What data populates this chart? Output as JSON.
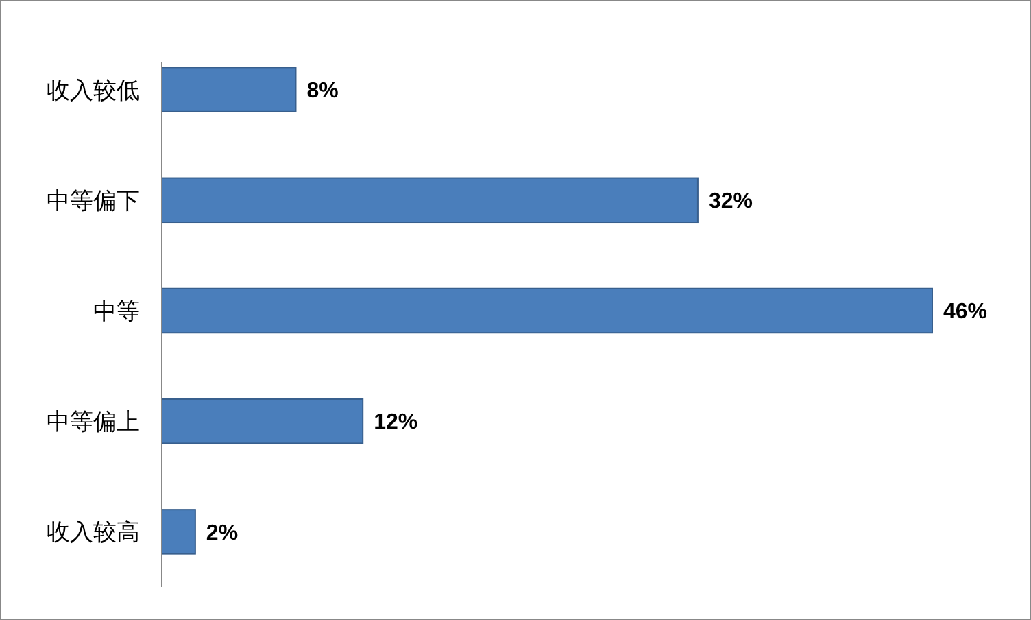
{
  "chart_data": {
    "type": "bar",
    "orientation": "horizontal",
    "categories": [
      "收入较低",
      "中等偏下",
      "中等",
      "中等偏上",
      "收入较高"
    ],
    "values": [
      8,
      32,
      46,
      12,
      2
    ],
    "value_labels": [
      "8%",
      "32%",
      "46%",
      "12%",
      "2%"
    ],
    "color": "#4a7ebb"
  }
}
